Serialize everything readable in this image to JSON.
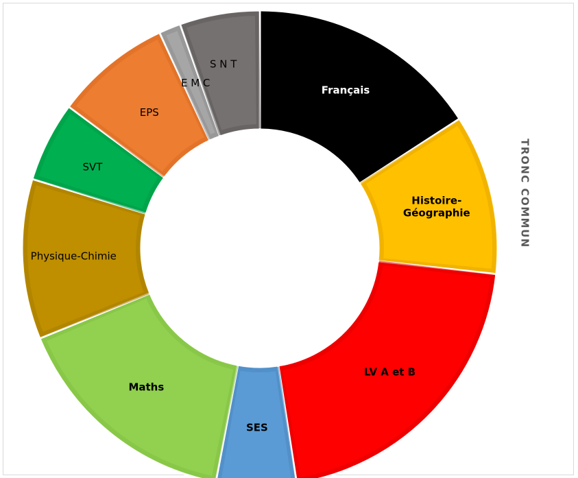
{
  "chart_data": {
    "type": "pie",
    "variant": "donut",
    "title": "TRONC COMMUN",
    "legend": "none",
    "slices": [
      {
        "label": "Français",
        "value": 16,
        "color": "#000000",
        "border": "#000000",
        "bold": true,
        "light_text": true
      },
      {
        "label": "Histoire-Géographie",
        "value": 11,
        "color": "#ffc000",
        "border": "#e6a800",
        "bold": true
      },
      {
        "label": "LV A et B",
        "value": 21,
        "color": "#ff0000",
        "border": "#e00000",
        "bold": true
      },
      {
        "label": "SES",
        "value": 5.5,
        "color": "#5b9bd5",
        "border": "#4a86c0",
        "bold": true
      },
      {
        "label": "Maths",
        "value": 16,
        "color": "#92d050",
        "border": "#7fbf40",
        "bold": true
      },
      {
        "label": "Physique-Chimie",
        "value": 11,
        "color": "#bf8f00",
        "border": "#a87d00",
        "bold": false
      },
      {
        "label": "SVT",
        "value": 5.5,
        "color": "#00b050",
        "border": "#009a45",
        "bold": false
      },
      {
        "label": "EPS",
        "value": 8,
        "color": "#ed7d31",
        "border": "#d96c22",
        "bold": false
      },
      {
        "label": "E M C",
        "value": 1.5,
        "color": "#a6a6a6",
        "border": "#8c8c8c",
        "bold": false
      },
      {
        "label": "S N T",
        "value": 5.5,
        "color": "#767171",
        "border": "#5f5a5a",
        "bold": false
      }
    ]
  }
}
